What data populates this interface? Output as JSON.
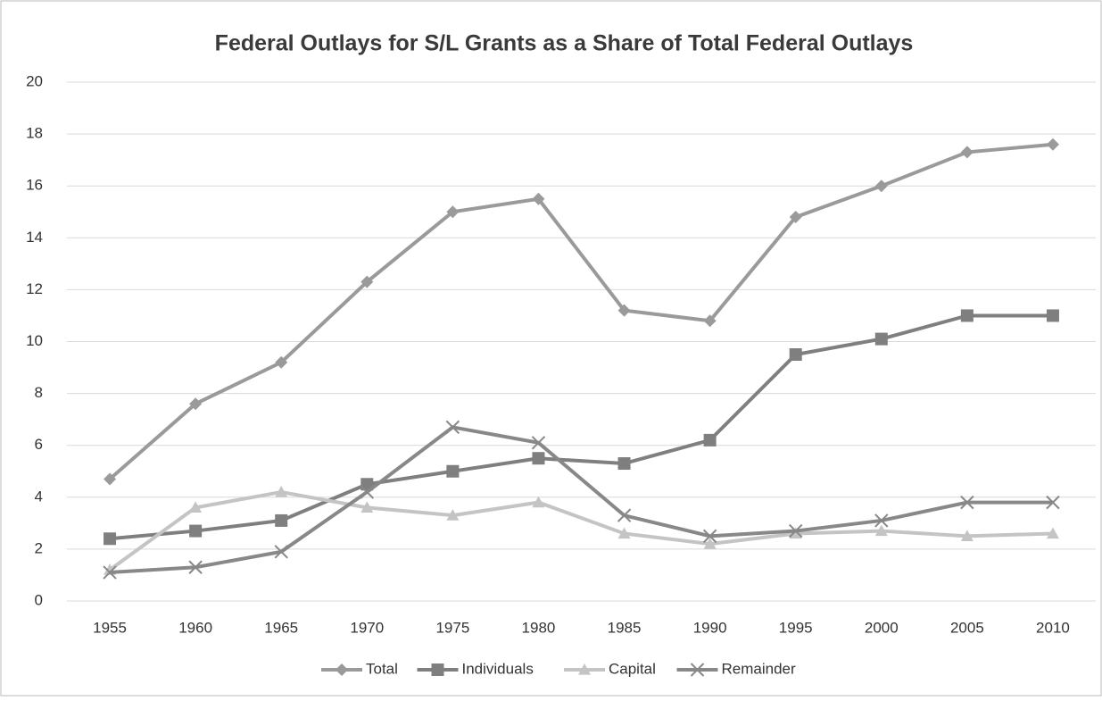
{
  "chart_data": {
    "type": "line",
    "title": "Federal Outlays for S/L Grants as a Share of Total Federal Outlays",
    "categories": [
      "1955",
      "1960",
      "1965",
      "1970",
      "1975",
      "1980",
      "1985",
      "1990",
      "1995",
      "2000",
      "2005",
      "2010"
    ],
    "series": [
      {
        "name": "Total",
        "color": "#9a9a9a",
        "marker": "diamond",
        "values": [
          4.7,
          7.6,
          9.2,
          12.3,
          15.0,
          15.5,
          11.2,
          10.8,
          14.8,
          16.0,
          17.3,
          17.6
        ]
      },
      {
        "name": "Individuals",
        "color": "#7f7f7f",
        "marker": "square",
        "values": [
          2.4,
          2.7,
          3.1,
          4.5,
          5.0,
          5.5,
          5.3,
          6.2,
          9.5,
          10.1,
          11.0,
          11.0
        ]
      },
      {
        "name": "Capital",
        "color": "#c4c4c4",
        "marker": "triangle",
        "values": [
          1.2,
          3.6,
          4.2,
          3.6,
          3.3,
          3.8,
          2.6,
          2.2,
          2.6,
          2.7,
          2.5,
          2.6
        ]
      },
      {
        "name": "Remainder",
        "color": "#888888",
        "marker": "x",
        "values": [
          1.1,
          1.3,
          1.9,
          4.2,
          6.7,
          6.1,
          3.3,
          2.5,
          2.7,
          3.1,
          3.8,
          3.8
        ]
      }
    ],
    "ylim": [
      0,
      20
    ],
    "yticks": [
      0,
      2,
      4,
      6,
      8,
      10,
      12,
      14,
      16,
      18,
      20
    ],
    "grid": true,
    "legend": "bottom"
  }
}
